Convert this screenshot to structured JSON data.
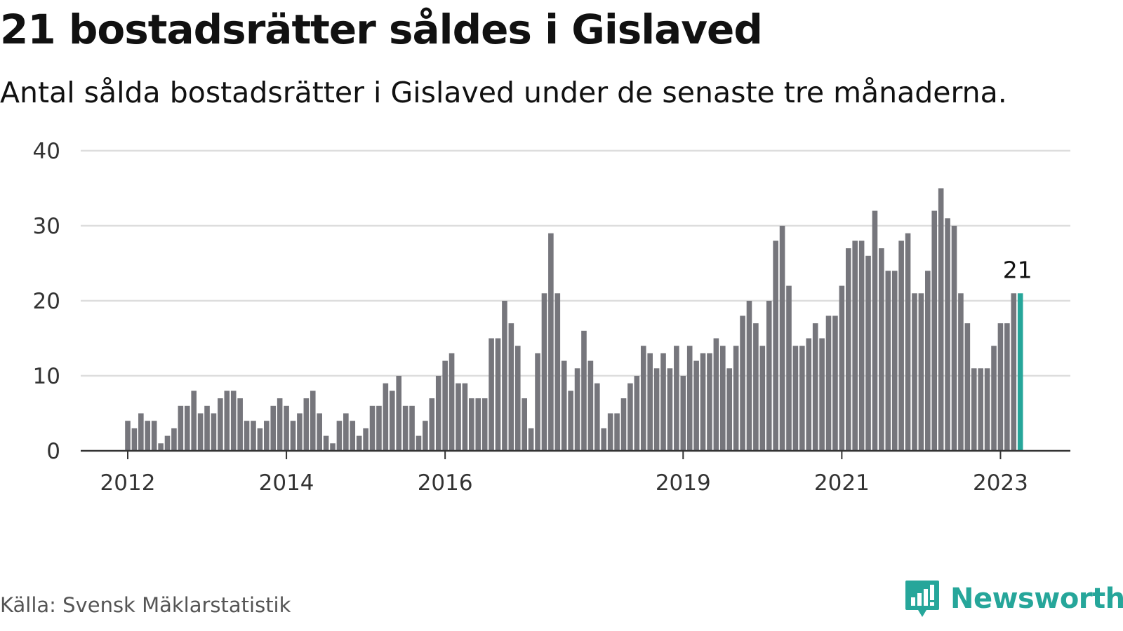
{
  "title": "21 bostadsrätter såldes i Gislaved",
  "subtitle": "Antal sålda bostadsrätter i Gislaved under de senaste tre månaderna.",
  "source": "Källa: Svensk Mäklarstatistik",
  "brand": {
    "name": "Newsworthy",
    "color": "#26a69a",
    "icon": "newsworthy-logo-icon"
  },
  "colors": {
    "bar": "#76767c",
    "highlight": "#26a69a",
    "grid": "#dddddd",
    "axis": "#333333"
  },
  "chart_data": {
    "type": "bar",
    "title": "21 bostadsrätter såldes i Gislaved",
    "subtitle": "Antal sålda bostadsrätter i Gislaved under de senaste tre månaderna.",
    "xlabel": "",
    "ylabel": "",
    "ylim": [
      0,
      40
    ],
    "yticks": [
      0,
      10,
      20,
      30,
      40
    ],
    "grid": true,
    "legend": "none",
    "x_start": "2012-01",
    "x_ticks": [
      {
        "label": "2012",
        "date": "2012-01"
      },
      {
        "label": "2014",
        "date": "2014-01"
      },
      {
        "label": "2016",
        "date": "2016-01"
      },
      {
        "label": "2019",
        "date": "2019-01"
      },
      {
        "label": "2021",
        "date": "2021-01"
      },
      {
        "label": "2023",
        "date": "2023-01"
      }
    ],
    "highlight": {
      "date": "2023-04",
      "value": 21,
      "label": "21"
    },
    "values": [
      4,
      3,
      5,
      4,
      4,
      1,
      2,
      3,
      6,
      6,
      8,
      5,
      6,
      5,
      7,
      8,
      8,
      7,
      4,
      4,
      3,
      4,
      6,
      7,
      6,
      4,
      5,
      7,
      8,
      5,
      2,
      1,
      4,
      5,
      4,
      2,
      3,
      6,
      6,
      9,
      8,
      10,
      6,
      6,
      2,
      4,
      7,
      10,
      12,
      13,
      9,
      9,
      7,
      7,
      7,
      15,
      15,
      20,
      17,
      14,
      7,
      3,
      13,
      21,
      29,
      21,
      12,
      8,
      11,
      16,
      12,
      9,
      3,
      5,
      5,
      7,
      9,
      10,
      14,
      13,
      11,
      13,
      11,
      14,
      10,
      14,
      12,
      13,
      13,
      15,
      14,
      11,
      14,
      18,
      20,
      17,
      14,
      20,
      28,
      30,
      22,
      14,
      14,
      15,
      17,
      15,
      18,
      18,
      22,
      27,
      28,
      28,
      26,
      32,
      27,
      24,
      24,
      28,
      29,
      21,
      21,
      24,
      32,
      35,
      31,
      30,
      21,
      17,
      11,
      11,
      11,
      14,
      17,
      17,
      21,
      21
    ]
  }
}
